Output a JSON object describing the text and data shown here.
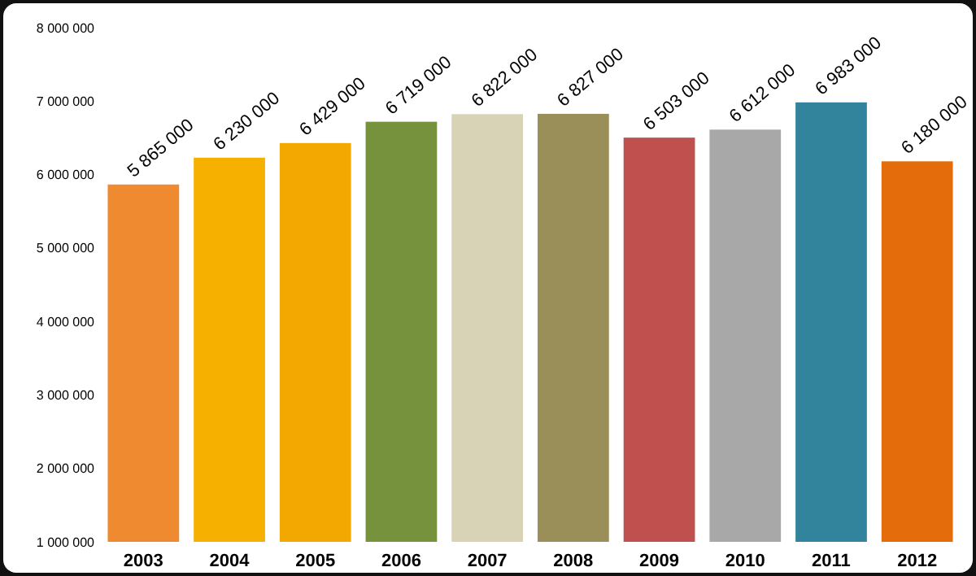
{
  "chart_data": {
    "type": "bar",
    "categories": [
      "2003",
      "2004",
      "2005",
      "2006",
      "2007",
      "2008",
      "2009",
      "2010",
      "2011",
      "2012"
    ],
    "values": [
      5865000,
      6230000,
      6429000,
      6719000,
      6822000,
      6827000,
      6503000,
      6612000,
      6983000,
      6180000
    ],
    "colors": [
      "#f08a30",
      "#f5b000",
      "#f2a800",
      "#77923c",
      "#d8d2b6",
      "#9a8f58",
      "#c0504d",
      "#a8a8a8",
      "#31849b",
      "#e46c0a"
    ],
    "value_labels": [
      "5 865 000",
      "6 230 000",
      "6 429 000",
      "6 719 000",
      "6 822 000",
      "6 827 000",
      "6 503 000",
      "6 612 000",
      "6 983 000",
      "6 180 000"
    ],
    "ylim": [
      1000000,
      8000000
    ],
    "yticks": [
      {
        "value": 1000000,
        "label": "1 000 000"
      },
      {
        "value": 2000000,
        "label": "2 000 000"
      },
      {
        "value": 3000000,
        "label": "3 000 000"
      },
      {
        "value": 4000000,
        "label": "4 000 000"
      },
      {
        "value": 5000000,
        "label": "5 000 000"
      },
      {
        "value": 6000000,
        "label": "6 000 000"
      },
      {
        "value": 7000000,
        "label": "7 000 000"
      },
      {
        "value": 8000000,
        "label": "8 000 000"
      }
    ]
  }
}
